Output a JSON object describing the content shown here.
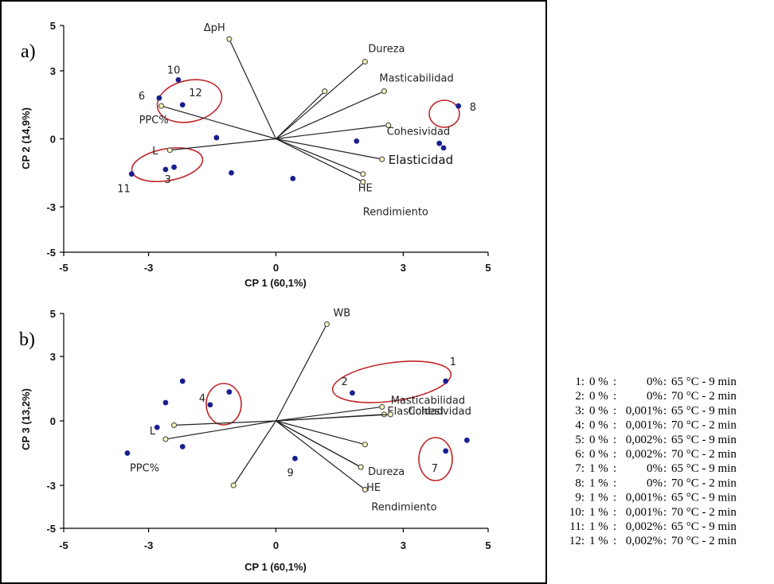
{
  "chart_data": [
    {
      "panel": "a)",
      "type": "scatter",
      "xlabel": "CP 1 (60,1%)",
      "ylabel": "CP 2 (14,9%)",
      "xlim": [
        -5,
        5
      ],
      "ylim": [
        -5,
        5
      ],
      "xticks": [
        "-5",
        "-3",
        "0",
        "3",
        "5"
      ],
      "yticks": [
        "5",
        "3",
        "0",
        "-3",
        "-5"
      ],
      "loadings": [
        {
          "label": "ΔpH",
          "x": -1.1,
          "y": 4.4
        },
        {
          "label": "Dureza",
          "x": 2.1,
          "y": 3.4
        },
        {
          "label": "",
          "x": 1.15,
          "y": 2.1
        },
        {
          "label": "Masticabilidad",
          "x": 2.55,
          "y": 2.1
        },
        {
          "label": "Cohesividad",
          "x": 2.65,
          "y": 0.6
        },
        {
          "label": "Elasticidad",
          "x": 2.5,
          "y": -0.9,
          "emphasis": true
        },
        {
          "label": "HE",
          "x": 2.05,
          "y": -1.55
        },
        {
          "label": "Rendimiento",
          "x": 2.05,
          "y": -1.9
        },
        {
          "label": "PPC%",
          "x": -2.7,
          "y": 1.45
        },
        {
          "label": "L",
          "x": -2.5,
          "y": -0.5
        }
      ],
      "scores": [
        {
          "label": "10",
          "x": -2.3,
          "y": 2.6
        },
        {
          "label": "12",
          "x": -2.2,
          "y": 1.5
        },
        {
          "label": "6",
          "x": -2.75,
          "y": 1.8
        },
        {
          "label": "",
          "x": -1.4,
          "y": 0.05
        },
        {
          "label": "",
          "x": -2.6,
          "y": -1.35
        },
        {
          "label": "3",
          "x": -2.4,
          "y": -1.25
        },
        {
          "label": "11",
          "x": -3.4,
          "y": -1.55
        },
        {
          "label": "",
          "x": -1.05,
          "y": -1.5
        },
        {
          "label": "",
          "x": 0.4,
          "y": -1.75
        },
        {
          "label": "",
          "x": 1.9,
          "y": -0.1
        },
        {
          "label": "8",
          "x": 4.3,
          "y": 1.45
        },
        {
          "label": "",
          "x": 3.85,
          "y": -0.2
        },
        {
          "label": "",
          "x": 3.95,
          "y": -0.4
        }
      ]
    },
    {
      "panel": "b)",
      "type": "scatter",
      "xlabel": "CP 1 (60,1%)",
      "ylabel": "CP 3 (13,2%)",
      "xlim": [
        -5,
        5
      ],
      "ylim": [
        -5,
        5
      ],
      "xticks": [
        "-5",
        "-3",
        "0",
        "3",
        "5"
      ],
      "yticks": [
        "5",
        "3",
        "0",
        "-3",
        "-5"
      ],
      "loadings": [
        {
          "label": "WB",
          "x": 1.2,
          "y": 4.5
        },
        {
          "label": "Masticabilidad",
          "x": 2.5,
          "y": 0.65
        },
        {
          "label": "Elasticidad",
          "x": 2.55,
          "y": 0.3
        },
        {
          "label": "Cohesividad",
          "x": 2.7,
          "y": 0.3
        },
        {
          "label": "",
          "x": 2.1,
          "y": -1.1
        },
        {
          "label": "Dureza",
          "x": 2.0,
          "y": -2.15
        },
        {
          "label": "HE",
          "x": 2.0,
          "y": -2.15
        },
        {
          "label": "Rendimiento",
          "x": 2.1,
          "y": -3.2
        },
        {
          "label": "L",
          "x": -2.6,
          "y": -0.85
        },
        {
          "label": "",
          "x": -2.4,
          "y": -0.2
        },
        {
          "label": "",
          "x": -1.0,
          "y": -3.0
        }
      ],
      "scores": [
        {
          "label": "1",
          "x": 4.0,
          "y": 1.85
        },
        {
          "label": "2",
          "x": 1.8,
          "y": 1.3
        },
        {
          "label": "",
          "x": -2.6,
          "y": 0.85
        },
        {
          "label": "",
          "x": -2.2,
          "y": 1.85
        },
        {
          "label": "",
          "x": -1.1,
          "y": 1.35
        },
        {
          "label": "4",
          "x": -1.55,
          "y": 0.75
        },
        {
          "label": "",
          "x": -2.8,
          "y": -0.3
        },
        {
          "label": "",
          "x": -2.2,
          "y": -1.2
        },
        {
          "label": "PPC%",
          "x": -3.5,
          "y": -1.5
        },
        {
          "label": "9",
          "x": 0.45,
          "y": -1.75
        },
        {
          "label": "7",
          "x": 4.0,
          "y": -1.4
        },
        {
          "label": "",
          "x": 4.5,
          "y": -0.9
        }
      ]
    }
  ],
  "legend": [
    {
      "num": "1:",
      "a": "0 %",
      "b": "0%",
      "c": "65 °C - 9 min"
    },
    {
      "num": "2:",
      "a": "0 %",
      "b": "0%",
      "c": "70 °C - 2 min"
    },
    {
      "num": "3:",
      "a": "0 %",
      "b": "0,001%",
      "c": "65 °C - 9 min"
    },
    {
      "num": "4:",
      "a": "0 %",
      "b": "0,001%",
      "c": "70 °C - 2 min"
    },
    {
      "num": "5:",
      "a": "0 %",
      "b": "0,002%",
      "c": "65 °C - 9 min"
    },
    {
      "num": "6:",
      "a": "0 %",
      "b": "0,002%",
      "c": "70 °C - 2 min"
    },
    {
      "num": "7:",
      "a": "1 %",
      "b": "0%",
      "c": "65 °C - 9 min"
    },
    {
      "num": "8:",
      "a": "1 %",
      "b": "0%",
      "c": "70 °C - 2 min"
    },
    {
      "num": "9:",
      "a": "1 %",
      "b": "0,001%",
      "c": "65 °C - 9 min"
    },
    {
      "num": "10:",
      "a": "1 %",
      "b": "0,001%",
      "c": "70 °C - 2 min"
    },
    {
      "num": "11:",
      "a": "1 %",
      "b": "0,002%",
      "c": "65 °C - 9 min"
    },
    {
      "num": "12:",
      "a": "1 %",
      "b": "0,002%",
      "c": "70 °C - 2 min"
    }
  ],
  "colors": {
    "score_point": "#1a1f8f",
    "loading_point": "#ffffc0",
    "highlight": "#c0282c"
  }
}
